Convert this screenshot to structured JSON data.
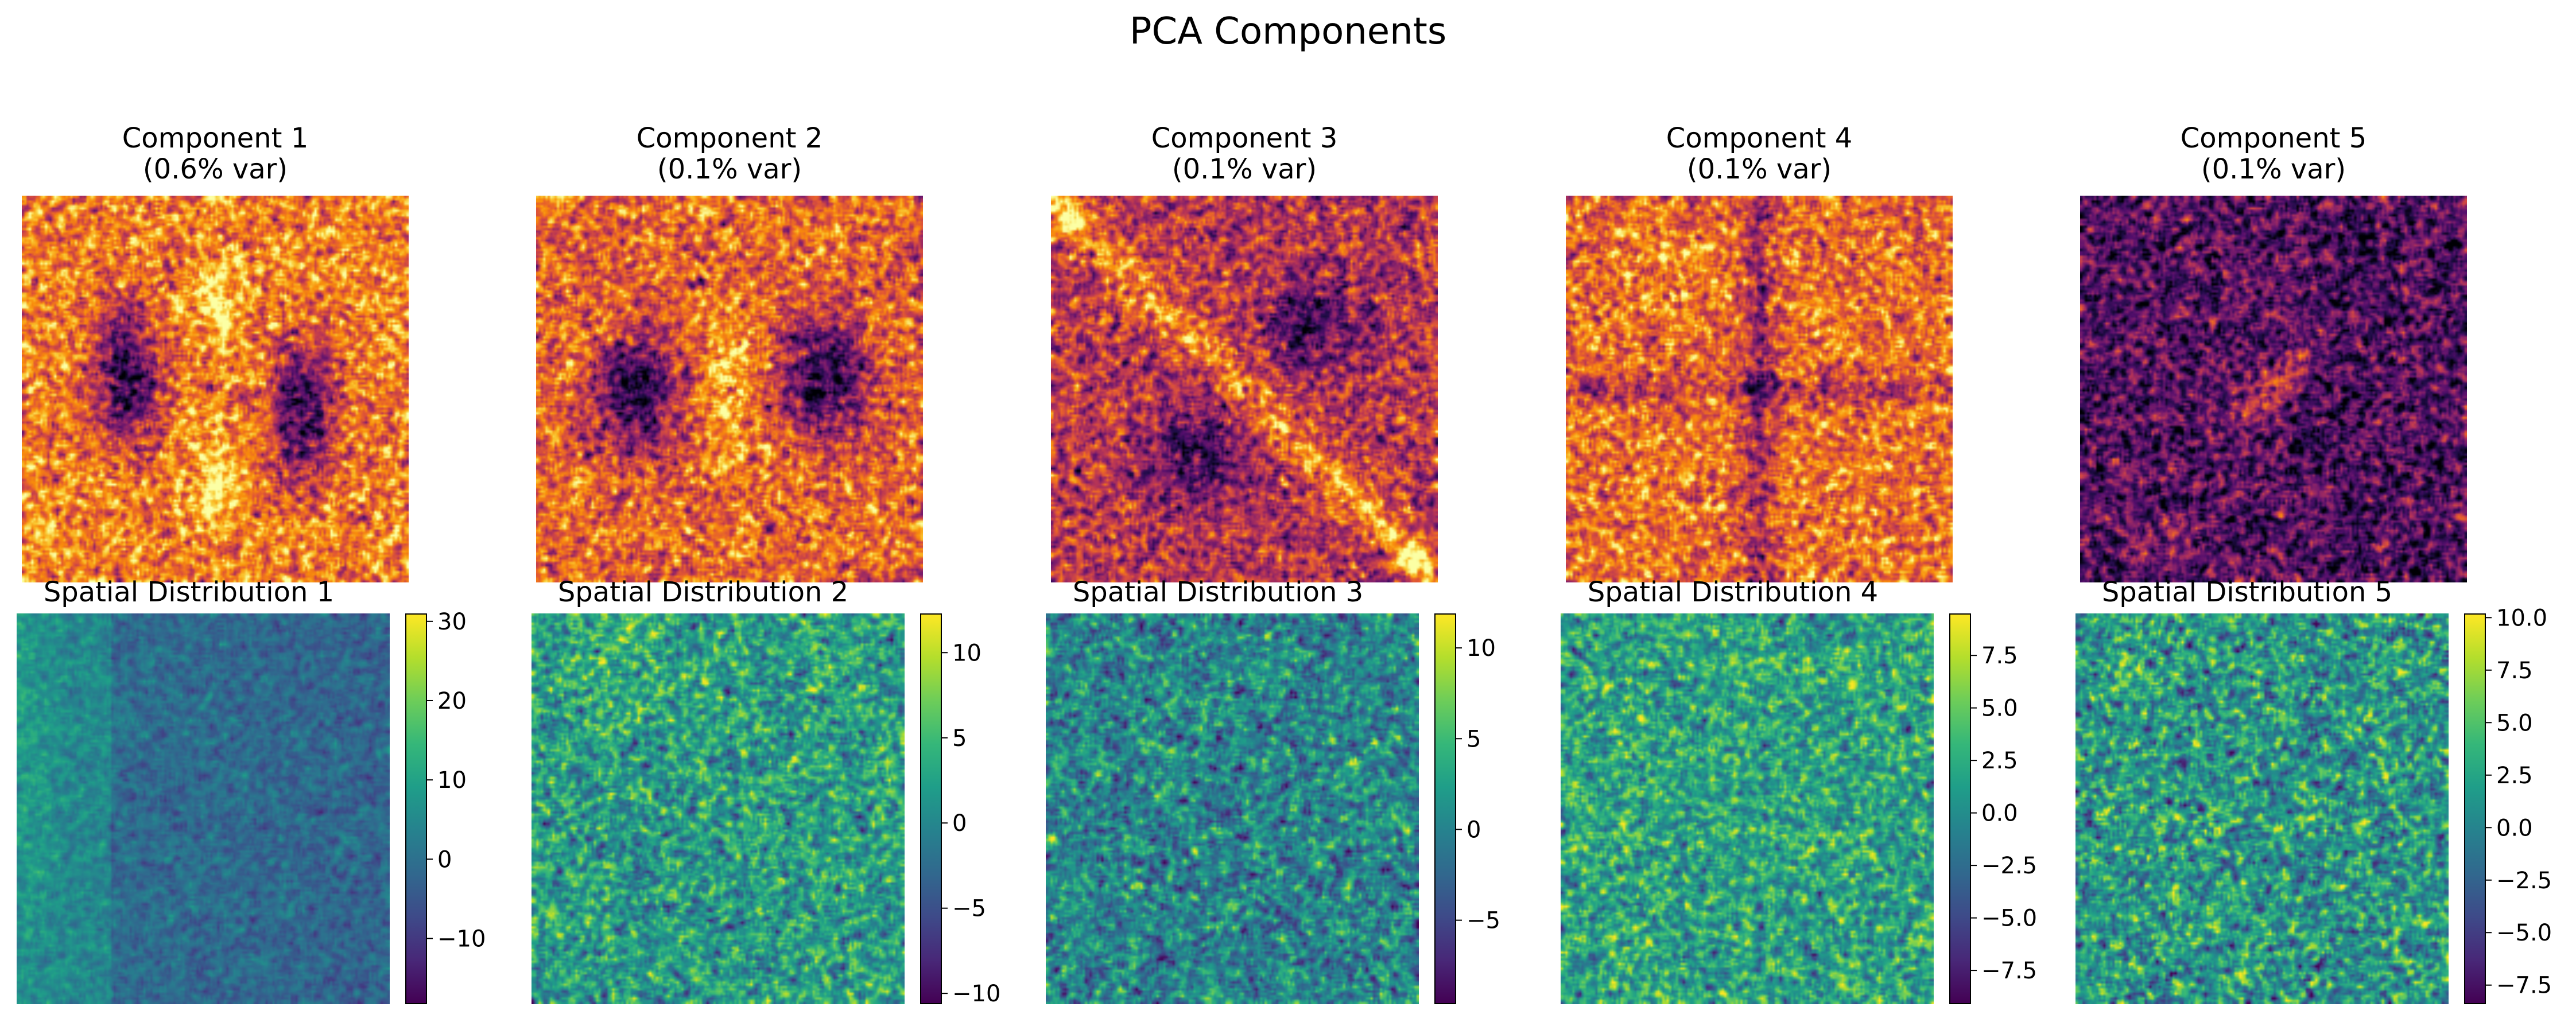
{
  "chart_data": {
    "type": "heatmap",
    "title": "PCA Components",
    "components": [
      {
        "title": "Component 1",
        "variance": "(0.6% var)",
        "colormap": "inferno",
        "pattern": "two dark lobes left and right, bright vertical band in center"
      },
      {
        "title": "Component 2",
        "variance": "(0.1% var)",
        "colormap": "inferno",
        "pattern": "two dark lobes left and right, bright center with dark dot"
      },
      {
        "title": "Component 3",
        "variance": "(0.1% var)",
        "colormap": "inferno",
        "pattern": "bright diagonal band from top-left to bottom-right, dark lobes upper-right and lower-left"
      },
      {
        "title": "Component 4",
        "variance": "(0.1% var)",
        "colormap": "inferno",
        "pattern": "bright background with dark cross along central row and column"
      },
      {
        "title": "Component 5",
        "variance": "(0.1% var)",
        "colormap": "inferno",
        "pattern": "dark background with small bright diagonal spot at center"
      }
    ],
    "spatial_distributions": [
      {
        "title": "Spatial Distribution 1",
        "colormap": "viridis",
        "vmin": -18,
        "vmax": 31,
        "ticks": [
          30,
          20,
          10,
          0,
          -10
        ],
        "tick_labels": [
          "30",
          "20",
          "10",
          "0",
          "−10"
        ]
      },
      {
        "title": "Spatial Distribution 2",
        "colormap": "viridis",
        "vmin": -10.5,
        "vmax": 12.3,
        "ticks": [
          10,
          5,
          0,
          -5,
          -10
        ],
        "tick_labels": [
          "10",
          "5",
          "0",
          "−5",
          "−10"
        ]
      },
      {
        "title": "Spatial Distribution 3",
        "colormap": "viridis",
        "vmin": -9.5,
        "vmax": 11.9,
        "ticks": [
          10,
          5,
          0,
          -5
        ],
        "tick_labels": [
          "10",
          "5",
          "0",
          "−5"
        ]
      },
      {
        "title": "Spatial Distribution 4",
        "colormap": "viridis",
        "vmin": -9.0,
        "vmax": 9.5,
        "ticks": [
          7.5,
          5.0,
          2.5,
          0.0,
          -2.5,
          -5.0,
          -7.5
        ],
        "tick_labels": [
          "7.5",
          "5.0",
          "2.5",
          "0.0",
          "−2.5",
          "−5.0",
          "−7.5"
        ]
      },
      {
        "title": "Spatial Distribution 5",
        "colormap": "viridis",
        "vmin": -8.3,
        "vmax": 10.2,
        "ticks": [
          10.0,
          7.5,
          5.0,
          2.5,
          0.0,
          -2.5,
          -5.0,
          -7.5
        ],
        "tick_labels": [
          "10.0",
          "7.5",
          "5.0",
          "2.5",
          "0.0",
          "−2.5",
          "−5.0",
          "−7.5"
        ]
      }
    ]
  }
}
